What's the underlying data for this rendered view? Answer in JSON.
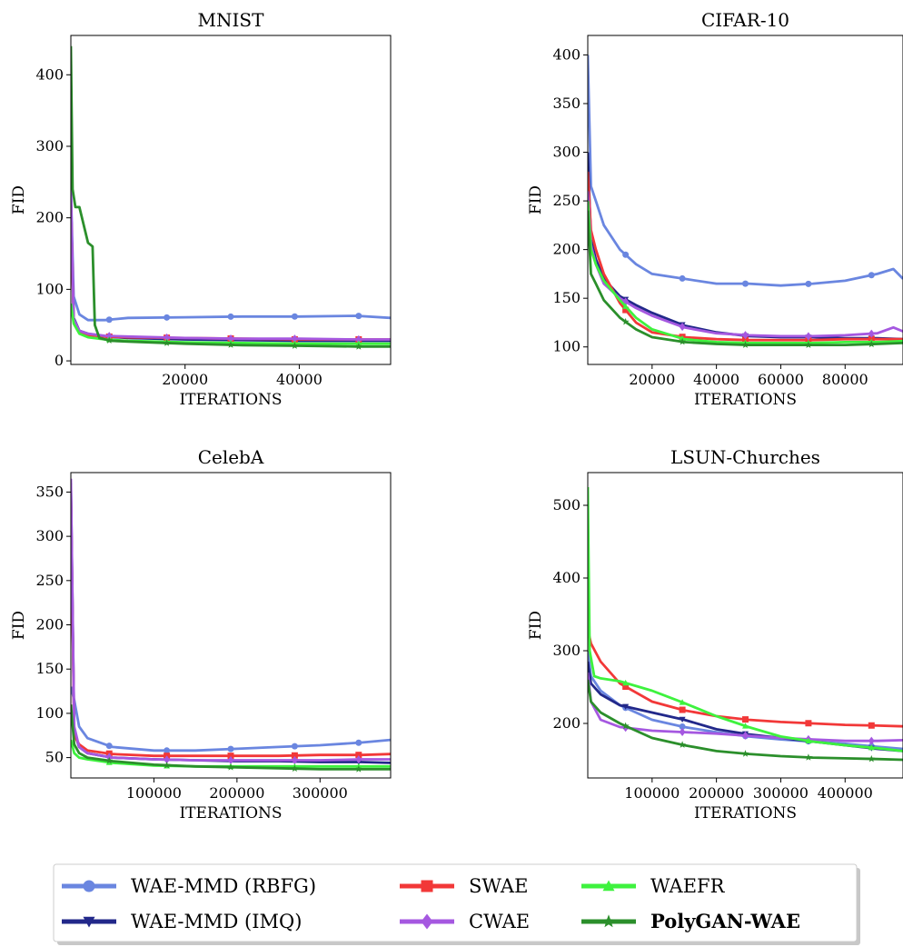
{
  "series_styles": [
    {
      "name": "WAE-MMD (RBFG)",
      "color": "#6a86e0",
      "marker": "circle"
    },
    {
      "name": "WAE-MMD (IMQ)",
      "color": "#22288a",
      "marker": "triangle-down"
    },
    {
      "name": "SWAE",
      "color": "#f23838",
      "marker": "square"
    },
    {
      "name": "CWAE",
      "color": "#a558e0",
      "marker": "diamond"
    },
    {
      "name": "WAEFR",
      "color": "#3ef23e",
      "marker": "triangle-up"
    },
    {
      "name": "PolyGAN-WAE",
      "color": "#2b8f2b",
      "marker": "star",
      "bold": true
    }
  ],
  "legend": {
    "placement": "bottom",
    "columns": 3
  },
  "chart_data": [
    {
      "type": "line",
      "title": "MNIST",
      "xlabel": "ITERATIONS",
      "ylabel": "FID",
      "xlim": [
        0,
        56000
      ],
      "ylim": [
        -5,
        455
      ],
      "xticks": [
        20000,
        40000
      ],
      "xtick_labels": [
        "20000",
        "40000"
      ],
      "yticks": [
        0,
        100,
        200,
        300,
        400
      ],
      "ytick_labels": [
        "0",
        "100",
        "200",
        "300",
        "400"
      ],
      "series": [
        {
          "name": "WAE-MMD (RBFG)",
          "x": [
            0,
            500,
            1500,
            3000,
            6000,
            10000,
            20000,
            30000,
            40000,
            50000,
            56000
          ],
          "values": [
            240,
            90,
            65,
            57,
            57,
            60,
            61,
            62,
            62,
            63,
            60
          ]
        },
        {
          "name": "WAE-MMD (IMQ)",
          "x": [
            0,
            500,
            1500,
            3000,
            6000,
            10000,
            20000,
            30000,
            40000,
            50000,
            56000
          ],
          "values": [
            230,
            60,
            42,
            38,
            34,
            32,
            30,
            29,
            28,
            28,
            28
          ]
        },
        {
          "name": "SWAE",
          "x": [
            0,
            500,
            1500,
            3000,
            6000,
            10000,
            20000,
            30000,
            40000,
            50000,
            56000
          ],
          "values": [
            230,
            55,
            40,
            36,
            34,
            33,
            32,
            31,
            30,
            30,
            30
          ]
        },
        {
          "name": "CWAE",
          "x": [
            0,
            500,
            1500,
            3000,
            6000,
            10000,
            20000,
            30000,
            40000,
            50000,
            56000
          ],
          "values": [
            240,
            58,
            42,
            38,
            35,
            34,
            32,
            31,
            31,
            30,
            30
          ]
        },
        {
          "name": "WAEFR",
          "x": [
            0,
            500,
            1500,
            3000,
            6000,
            10000,
            20000,
            30000,
            40000,
            50000,
            56000
          ],
          "values": [
            80,
            52,
            38,
            33,
            30,
            28,
            26,
            25,
            24,
            24,
            24
          ]
        },
        {
          "name": "PolyGAN-WAE",
          "x": [
            0,
            300,
            800,
            1500,
            3000,
            3800,
            4200,
            5000,
            7000,
            10000,
            20000,
            30000,
            40000,
            50000,
            56000
          ],
          "values": [
            440,
            240,
            215,
            215,
            165,
            160,
            50,
            32,
            28,
            27,
            24,
            22,
            21,
            20,
            20
          ]
        }
      ]
    },
    {
      "type": "line",
      "title": "CIFAR-10",
      "xlabel": "ITERATIONS",
      "ylabel": "FID",
      "xlim": [
        0,
        98000
      ],
      "ylim": [
        82,
        420
      ],
      "xticks": [
        20000,
        40000,
        60000,
        80000
      ],
      "xtick_labels": [
        "20000",
        "40000",
        "60000",
        "80000"
      ],
      "yticks": [
        100,
        150,
        200,
        250,
        300,
        350,
        400
      ],
      "ytick_labels": [
        "100",
        "150",
        "200",
        "250",
        "300",
        "350",
        "400"
      ],
      "series": [
        {
          "name": "WAE-MMD (RBFG)",
          "x": [
            0,
            1000,
            2500,
            5000,
            10000,
            15000,
            20000,
            30000,
            40000,
            50000,
            60000,
            70000,
            80000,
            90000,
            95000,
            98000
          ],
          "values": [
            400,
            265,
            250,
            225,
            200,
            185,
            175,
            170,
            165,
            165,
            163,
            165,
            168,
            175,
            180,
            170
          ]
        },
        {
          "name": "WAE-MMD (IMQ)",
          "x": [
            0,
            1000,
            2500,
            5000,
            10000,
            15000,
            20000,
            30000,
            40000,
            50000,
            60000,
            70000,
            80000,
            90000,
            98000
          ],
          "values": [
            300,
            210,
            190,
            170,
            152,
            143,
            135,
            122,
            115,
            111,
            110,
            110,
            109,
            109,
            108
          ]
        },
        {
          "name": "SWAE",
          "x": [
            0,
            1000,
            2500,
            5000,
            10000,
            15000,
            20000,
            30000,
            40000,
            50000,
            60000,
            70000,
            80000,
            90000,
            98000
          ],
          "values": [
            280,
            220,
            200,
            175,
            145,
            125,
            115,
            110,
            108,
            107,
            107,
            107,
            108,
            108,
            108
          ]
        },
        {
          "name": "CWAE",
          "x": [
            0,
            1000,
            2500,
            5000,
            10000,
            15000,
            20000,
            30000,
            40000,
            50000,
            60000,
            70000,
            80000,
            90000,
            95000,
            98000
          ],
          "values": [
            260,
            205,
            185,
            165,
            150,
            140,
            132,
            120,
            114,
            112,
            111,
            111,
            112,
            114,
            120,
            116
          ]
        },
        {
          "name": "WAEFR",
          "x": [
            0,
            1000,
            2500,
            5000,
            10000,
            15000,
            20000,
            30000,
            40000,
            50000,
            60000,
            70000,
            80000,
            90000,
            98000
          ],
          "values": [
            250,
            200,
            185,
            168,
            148,
            130,
            118,
            108,
            105,
            104,
            104,
            104,
            105,
            105,
            106
          ]
        },
        {
          "name": "PolyGAN-WAE",
          "x": [
            0,
            1000,
            2500,
            5000,
            10000,
            15000,
            20000,
            30000,
            40000,
            50000,
            60000,
            70000,
            80000,
            90000,
            98000
          ],
          "values": [
            240,
            175,
            165,
            148,
            130,
            118,
            110,
            105,
            103,
            102,
            102,
            102,
            102,
            103,
            104
          ]
        }
      ]
    },
    {
      "type": "line",
      "title": "CelebA",
      "xlabel": "ITERATIONS",
      "ylabel": "FID",
      "xlim": [
        0,
        385000
      ],
      "ylim": [
        27,
        372
      ],
      "xticks": [
        100000,
        200000,
        300000
      ],
      "xtick_labels": [
        "100000",
        "200000",
        "300000"
      ],
      "yticks": [
        50,
        100,
        150,
        200,
        250,
        300,
        350
      ],
      "ytick_labels": [
        "50",
        "100",
        "150",
        "200",
        "250",
        "300",
        "350"
      ],
      "series": [
        {
          "name": "WAE-MMD (RBFG)",
          "x": [
            0,
            4000,
            10000,
            20000,
            50000,
            100000,
            150000,
            200000,
            250000,
            300000,
            350000,
            385000
          ],
          "values": [
            130,
            115,
            85,
            72,
            62,
            58,
            58,
            60,
            62,
            64,
            67,
            70
          ]
        },
        {
          "name": "WAE-MMD (IMQ)",
          "x": [
            0,
            4000,
            10000,
            20000,
            50000,
            100000,
            150000,
            200000,
            250000,
            300000,
            350000,
            385000
          ],
          "values": [
            360,
            80,
            62,
            55,
            50,
            48,
            47,
            46,
            46,
            45,
            45,
            44
          ]
        },
        {
          "name": "SWAE",
          "x": [
            0,
            4000,
            10000,
            20000,
            50000,
            100000,
            150000,
            200000,
            250000,
            300000,
            350000,
            385000
          ],
          "values": [
            350,
            75,
            65,
            58,
            54,
            52,
            52,
            52,
            52,
            53,
            53,
            54
          ]
        },
        {
          "name": "CWAE",
          "x": [
            0,
            4000,
            10000,
            20000,
            50000,
            100000,
            150000,
            200000,
            250000,
            300000,
            350000,
            385000
          ],
          "values": [
            365,
            85,
            62,
            55,
            50,
            48,
            47,
            47,
            47,
            47,
            48,
            48
          ]
        },
        {
          "name": "WAEFR",
          "x": [
            0,
            4000,
            10000,
            20000,
            50000,
            100000,
            150000,
            200000,
            250000,
            300000,
            350000,
            385000
          ],
          "values": [
            70,
            55,
            50,
            48,
            44,
            41,
            40,
            40,
            40,
            40,
            40,
            40
          ]
        },
        {
          "name": "PolyGAN-WAE",
          "x": [
            0,
            4000,
            10000,
            20000,
            50000,
            100000,
            150000,
            200000,
            250000,
            300000,
            350000,
            385000
          ],
          "values": [
            110,
            65,
            55,
            50,
            46,
            42,
            40,
            39,
            38,
            37,
            37,
            37
          ]
        }
      ]
    },
    {
      "type": "line",
      "title": "LSUN-Churches",
      "xlabel": "ITERATIONS",
      "ylabel": "FID",
      "xlim": [
        0,
        490000
      ],
      "ylim": [
        125,
        545
      ],
      "xticks": [
        100000,
        200000,
        300000,
        400000
      ],
      "xtick_labels": [
        "100000",
        "200000",
        "300000",
        "400000"
      ],
      "yticks": [
        200,
        300,
        400,
        500
      ],
      "ytick_labels": [
        "200",
        "300",
        "400",
        "500"
      ],
      "series": [
        {
          "name": "WAE-MMD (RBFG)",
          "x": [
            0,
            5000,
            20000,
            50000,
            100000,
            150000,
            200000,
            250000,
            300000,
            350000,
            400000,
            450000,
            490000
          ],
          "values": [
            300,
            265,
            245,
            225,
            205,
            195,
            188,
            182,
            178,
            175,
            172,
            168,
            165
          ]
        },
        {
          "name": "WAE-MMD (IMQ)",
          "x": [
            0,
            5000,
            20000,
            50000,
            100000,
            150000,
            200000,
            250000,
            300000,
            350000,
            400000,
            450000,
            490000
          ],
          "values": [
            285,
            255,
            240,
            225,
            215,
            205,
            192,
            185,
            180,
            175,
            170,
            165,
            162
          ]
        },
        {
          "name": "SWAE",
          "x": [
            0,
            5000,
            20000,
            50000,
            100000,
            150000,
            200000,
            250000,
            300000,
            350000,
            400000,
            450000,
            490000
          ],
          "values": [
            330,
            310,
            285,
            255,
            230,
            218,
            210,
            205,
            202,
            200,
            198,
            197,
            196
          ]
        },
        {
          "name": "CWAE",
          "x": [
            0,
            5000,
            20000,
            50000,
            100000,
            150000,
            200000,
            250000,
            300000,
            350000,
            400000,
            450000,
            490000
          ],
          "values": [
            270,
            230,
            205,
            195,
            190,
            188,
            186,
            183,
            180,
            178,
            176,
            176,
            177
          ]
        },
        {
          "name": "WAEFR",
          "x": [
            0,
            3000,
            10000,
            20000,
            50000,
            100000,
            150000,
            200000,
            250000,
            300000,
            350000,
            400000,
            450000,
            490000
          ],
          "values": [
            525,
            300,
            265,
            262,
            258,
            245,
            228,
            210,
            195,
            182,
            175,
            170,
            166,
            162
          ]
        },
        {
          "name": "PolyGAN-WAE",
          "x": [
            0,
            5000,
            20000,
            50000,
            100000,
            150000,
            200000,
            250000,
            300000,
            350000,
            400000,
            450000,
            490000
          ],
          "values": [
            260,
            230,
            215,
            200,
            180,
            170,
            162,
            158,
            155,
            153,
            152,
            151,
            150
          ]
        }
      ]
    }
  ]
}
